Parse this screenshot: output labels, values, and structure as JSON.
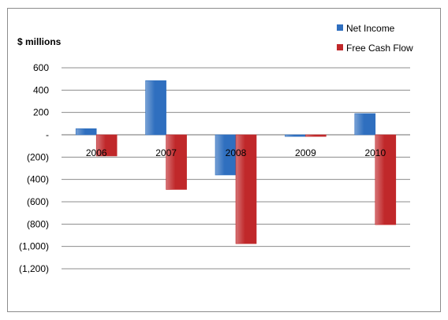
{
  "chart_data": {
    "type": "bar",
    "ylabel": "$ millions",
    "categories": [
      "2006",
      "2007",
      "2008",
      "2009",
      "2010"
    ],
    "series": [
      {
        "name": "Net Income",
        "values": [
          55,
          485,
          -360,
          -15,
          190
        ],
        "color": "#2f6fbf"
      },
      {
        "name": "Free Cash Flow",
        "values": [
          -190,
          -490,
          -975,
          -15,
          -805
        ],
        "color": "#c0282a"
      }
    ],
    "ylim": [
      -1200,
      600
    ],
    "yticks": [
      600,
      400,
      200,
      0,
      -200,
      -400,
      -600,
      -800,
      -1000,
      -1200
    ],
    "ytick_labels": [
      "600",
      "400",
      "200",
      "-",
      "(200)",
      "(400)",
      "(600)",
      "(800)",
      "(1,000)",
      "(1,200)"
    ],
    "grid": true,
    "legend_position": "top-right"
  }
}
